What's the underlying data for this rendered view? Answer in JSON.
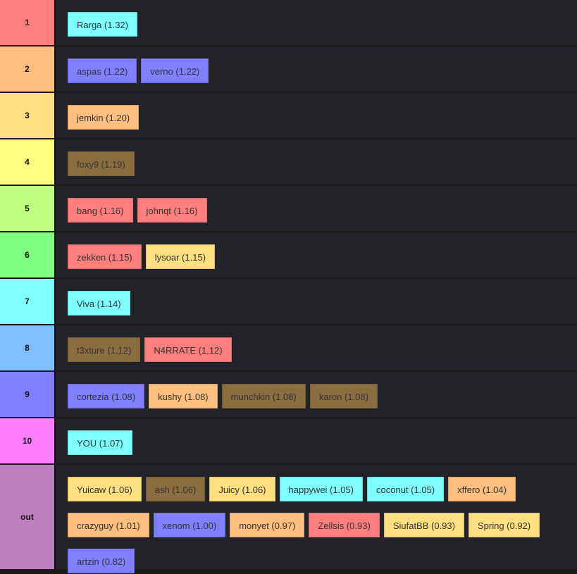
{
  "tiers": [
    {
      "label": "1",
      "color": "#ff7f7f",
      "players": [
        {
          "name": "Rarga (1.32)",
          "color": "#7fffff"
        }
      ]
    },
    {
      "label": "2",
      "color": "#ffbf7f",
      "players": [
        {
          "name": "aspas (1.22)",
          "color": "#7f7fff"
        },
        {
          "name": "verno (1.22)",
          "color": "#7f7fff"
        }
      ]
    },
    {
      "label": "3",
      "color": "#ffdf7f",
      "players": [
        {
          "name": "jemkin (1.20)",
          "color": "#ffbf7f"
        }
      ]
    },
    {
      "label": "4",
      "color": "#ffff7f",
      "players": [
        {
          "name": "foxy9 (1.19)",
          "color": "#8b6d40"
        }
      ]
    },
    {
      "label": "5",
      "color": "#bfff7f",
      "players": [
        {
          "name": "bang (1.16)",
          "color": "#ff7f7f"
        },
        {
          "name": "johnqt (1.16)",
          "color": "#ff7f7f"
        }
      ]
    },
    {
      "label": "6",
      "color": "#7fff7f",
      "players": [
        {
          "name": "zekken (1.15)",
          "color": "#ff7f7f"
        },
        {
          "name": "lysoar (1.15)",
          "color": "#ffdf7f"
        }
      ]
    },
    {
      "label": "7",
      "color": "#7fffff",
      "players": [
        {
          "name": "Viva (1.14)",
          "color": "#7fffff"
        }
      ]
    },
    {
      "label": "8",
      "color": "#7fbfff",
      "players": [
        {
          "name": "t3xture (1.12)",
          "color": "#8b6d40"
        },
        {
          "name": "N4RRATE (1.12)",
          "color": "#ff7f7f"
        }
      ]
    },
    {
      "label": "9",
      "color": "#7f7fff",
      "players": [
        {
          "name": "cortezia (1.08)",
          "color": "#7f7fff"
        },
        {
          "name": "kushy (1.08)",
          "color": "#ffbf7f"
        },
        {
          "name": "munchkin (1.08)",
          "color": "#8b6d40"
        },
        {
          "name": "karon (1.08)",
          "color": "#8b6d40"
        }
      ]
    },
    {
      "label": "10",
      "color": "#ff7fff",
      "players": [
        {
          "name": "YOU (1.07)",
          "color": "#7fffff"
        }
      ]
    },
    {
      "label": "out",
      "color": "#bf7fbf",
      "players": [
        {
          "name": "Yuicaw (1.06)",
          "color": "#ffdf7f"
        },
        {
          "name": "ash (1.06)",
          "color": "#8b6d40"
        },
        {
          "name": "Juicy (1.06)",
          "color": "#ffdf7f"
        },
        {
          "name": "happywei (1.05)",
          "color": "#7fffff"
        },
        {
          "name": "coconut (1.05)",
          "color": "#7fffff"
        },
        {
          "name": "xffero (1.04)",
          "color": "#ffbf7f"
        },
        {
          "name": "crazyguy (1.01)",
          "color": "#ffbf7f"
        },
        {
          "name": "xenom (1.00)",
          "color": "#7f7fff"
        },
        {
          "name": "monyet (0.97)",
          "color": "#ffbf7f"
        },
        {
          "name": "Zellsis (0.93)",
          "color": "#ff7f7f"
        },
        {
          "name": "SiufatBB (0.93)",
          "color": "#ffdf7f"
        },
        {
          "name": "Spring (0.92)",
          "color": "#ffdf7f"
        },
        {
          "name": "artzin (0.82)",
          "color": "#7f7fff"
        }
      ]
    }
  ]
}
